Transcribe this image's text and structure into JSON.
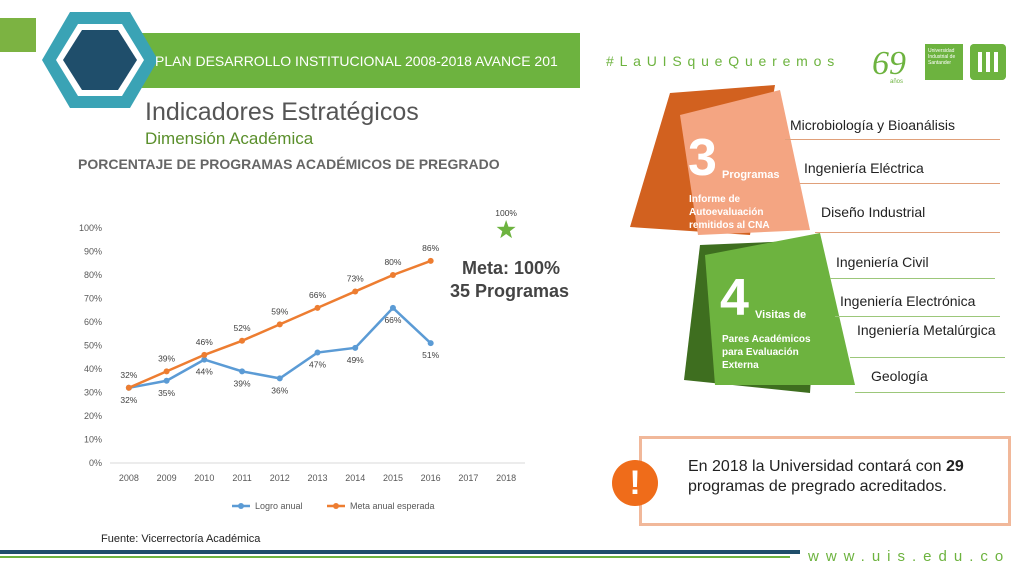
{
  "header": {
    "title": "PLAN DESARROLLO INSTITUCIONAL 2008-2018 AVANCE 201",
    "hashtag": "#LaUISqueQueremos",
    "logo_anniversary": "69",
    "logo_anniversary_sub": "años",
    "logo_text": "Universidad Industrial de Santander"
  },
  "titles": {
    "main": "Indicadores Estratégicos",
    "sub": "Dimensión Académica",
    "chart_heading": "PORCENTAJE DE PROGRAMAS ACADÉMICOS DE PREGRADO"
  },
  "chart_data": {
    "type": "line",
    "x": [
      "2008",
      "2009",
      "2010",
      "2011",
      "2012",
      "2013",
      "2014",
      "2015",
      "2016",
      "2017",
      "2018"
    ],
    "ylim": [
      0,
      100
    ],
    "yticks": [
      "0%",
      "10%",
      "20%",
      "30%",
      "40%",
      "50%",
      "60%",
      "70%",
      "80%",
      "90%",
      "100%"
    ],
    "legend_position": "bottom",
    "series": [
      {
        "name": "Logro anual",
        "color": "#5b9bd5",
        "values": [
          32,
          35,
          44,
          39,
          36,
          47,
          49,
          66,
          51,
          null,
          null
        ],
        "labels": [
          "32%",
          "35%",
          "44%",
          "39%",
          "36%",
          "47%",
          "49%",
          "66%",
          "51%",
          "",
          ""
        ]
      },
      {
        "name": "Meta anual esperada",
        "color": "#ed7d31",
        "values": [
          32,
          39,
          46,
          52,
          59,
          66,
          73,
          80,
          86,
          null,
          null
        ],
        "labels": [
          "32%",
          "39%",
          "46%",
          "52%",
          "59%",
          "66%",
          "73%",
          "80%",
          "86%",
          "",
          ""
        ]
      }
    ],
    "target_point": {
      "x": "2018",
      "y": 100,
      "label": "100%",
      "color": "#6db33f"
    }
  },
  "meta": {
    "line1": "Meta: 100%",
    "line2": "35 Programas"
  },
  "source": "Fuente: Vicerrectoría Académica",
  "panel_orange": {
    "number": "3",
    "unit": "Programas",
    "desc": [
      "Informe de",
      "Autoevaluación",
      "remitidos al CNA"
    ],
    "items": [
      "Microbiología y Bioanálisis",
      "Ingeniería Eléctrica",
      "Diseño Industrial"
    ],
    "color": "#e2692a",
    "color_light": "#f4a582"
  },
  "panel_green": {
    "number": "4",
    "unit": "Visitas de",
    "desc": [
      "Pares Académicos",
      "para Evaluación",
      "Externa"
    ],
    "items": [
      "Ingeniería Civil",
      "Ingeniería Electrónica",
      "Ingeniería Metalúrgica",
      "Geología"
    ],
    "color": "#6db33f",
    "color_dark": "#3e6e1f"
  },
  "note": {
    "icon": "!",
    "text_before": "En 2018 la Universidad contará con ",
    "highlight": "29",
    "text_after": " programas de pregrado acreditados."
  },
  "footer": {
    "website": "www.uis.edu.co"
  }
}
